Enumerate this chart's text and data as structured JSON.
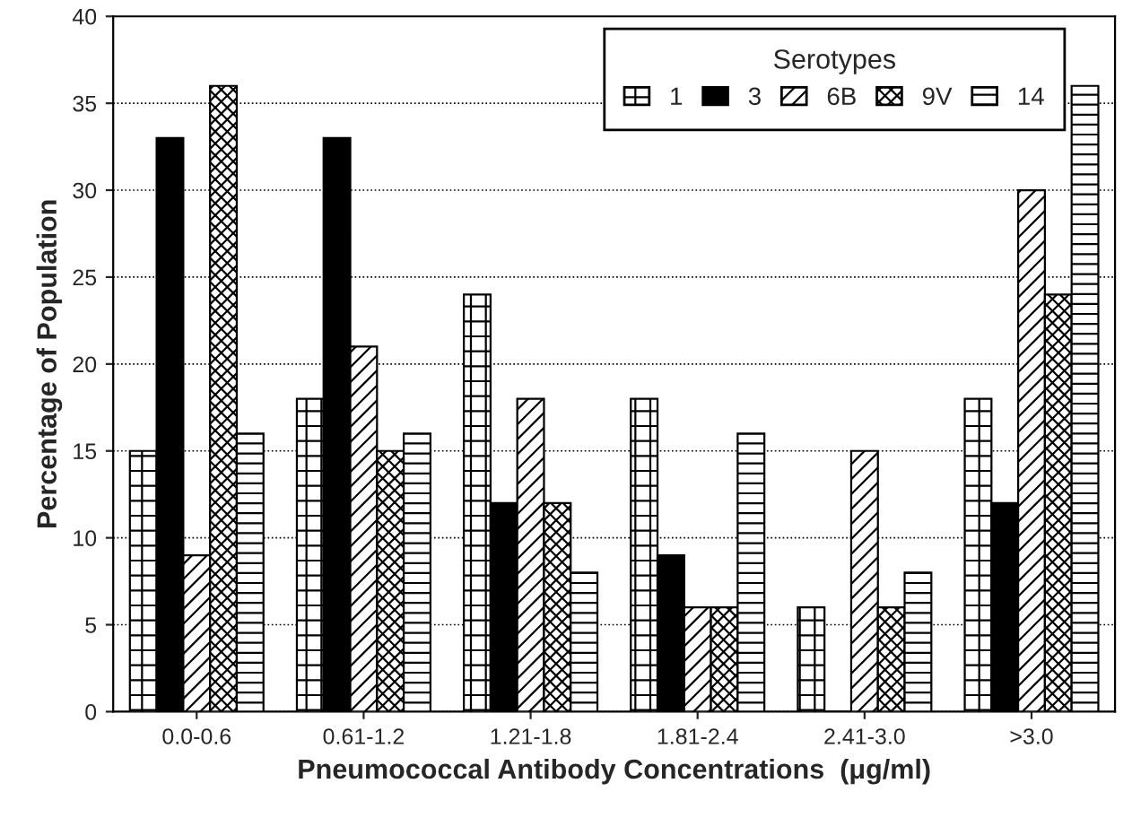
{
  "chart_data": {
    "type": "bar",
    "xlabel": "Pneumococcal Antibody Concentrations  (μg/ml)",
    "ylabel": "Percentage of Population",
    "legend_title": "Serotypes",
    "categories": [
      "0.0-0.6",
      "0.61-1.2",
      "1.21-1.8",
      "1.81-2.4",
      "2.41-3.0",
      ">3.0"
    ],
    "series": [
      {
        "name": "1",
        "color": "#000000",
        "values": [
          15,
          18,
          24,
          18,
          6,
          18
        ]
      },
      {
        "name": "3",
        "color": "#000000",
        "values": [
          33,
          33,
          12,
          9,
          0,
          12
        ]
      },
      {
        "name": "6B",
        "color": "#000000",
        "values": [
          9,
          21,
          18,
          6,
          15,
          30
        ]
      },
      {
        "name": "9V",
        "color": "#000000",
        "values": [
          36,
          15,
          12,
          6,
          6,
          24
        ]
      },
      {
        "name": "14",
        "color": "#000000",
        "values": [
          16,
          16,
          8,
          16,
          8,
          36
        ]
      }
    ],
    "ylim": [
      0,
      40
    ],
    "yticks": [
      0,
      5,
      10,
      15,
      20,
      25,
      30,
      35,
      40
    ],
    "grid": "y",
    "legend": "top"
  }
}
